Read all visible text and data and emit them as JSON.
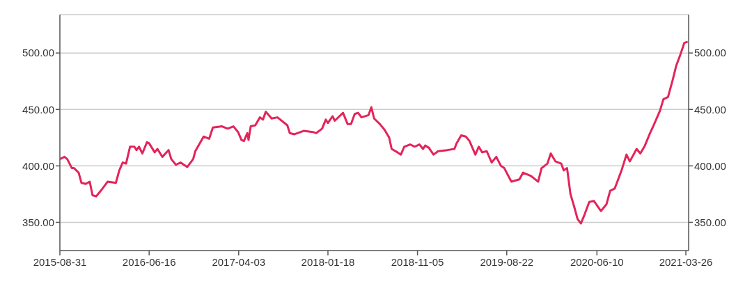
{
  "chart_data": {
    "type": "line",
    "x": [
      "2015-08-31",
      "2015-09-15",
      "2015-09-24",
      "2015-10-09",
      "2015-10-16",
      "2015-10-31",
      "2015-11-09",
      "2015-11-23",
      "2015-12-06",
      "2015-12-15",
      "2015-12-27",
      "2016-01-11",
      "2016-02-02",
      "2016-02-29",
      "2016-03-11",
      "2016-03-22",
      "2016-04-02",
      "2016-04-15",
      "2016-04-29",
      "2016-05-06",
      "2016-05-14",
      "2016-05-25",
      "2016-06-09",
      "2016-06-16",
      "2016-07-04",
      "2016-07-13",
      "2016-07-29",
      "2016-08-18",
      "2016-08-27",
      "2016-09-11",
      "2016-09-26",
      "2016-10-18",
      "2016-11-06",
      "2016-11-13",
      "2016-12-10",
      "2016-12-28",
      "2017-01-09",
      "2017-02-08",
      "2017-02-26",
      "2017-03-17",
      "2017-04-01",
      "2017-04-12",
      "2017-04-20",
      "2017-05-01",
      "2017-05-05",
      "2017-05-12",
      "2017-05-27",
      "2017-06-11",
      "2017-06-21",
      "2017-06-30",
      "2017-07-19",
      "2017-08-07",
      "2017-09-08",
      "2017-09-16",
      "2017-10-01",
      "2017-10-31",
      "2017-11-30",
      "2017-12-11",
      "2017-12-30",
      "2018-01-11",
      "2018-01-18",
      "2018-02-02",
      "2018-02-09",
      "2018-03-08",
      "2018-03-23",
      "2018-04-03",
      "2018-04-15",
      "2018-04-26",
      "2018-05-07",
      "2018-05-30",
      "2018-06-08",
      "2018-06-17",
      "2018-07-06",
      "2018-07-21",
      "2018-08-05",
      "2018-08-13",
      "2018-09-01",
      "2018-09-12",
      "2018-09-23",
      "2018-10-12",
      "2018-10-27",
      "2018-11-11",
      "2018-11-23",
      "2018-11-30",
      "2018-12-12",
      "2018-12-27",
      "2019-01-11",
      "2019-02-10",
      "2019-03-05",
      "2019-03-12",
      "2019-03-27",
      "2019-04-11",
      "2019-04-23",
      "2019-05-12",
      "2019-05-23",
      "2019-06-03",
      "2019-06-18",
      "2019-07-04",
      "2019-07-19",
      "2019-08-03",
      "2019-08-14",
      "2019-09-06",
      "2019-10-02",
      "2019-10-14",
      "2019-11-09",
      "2019-12-02",
      "2019-12-13",
      "2020-01-01",
      "2020-01-12",
      "2020-01-27",
      "2020-02-15",
      "2020-02-23",
      "2020-03-05",
      "2020-03-16",
      "2020-03-28",
      "2020-04-08",
      "2020-04-19",
      "2020-05-01",
      "2020-05-16",
      "2020-05-31",
      "2020-06-23",
      "2020-07-11",
      "2020-07-23",
      "2020-08-07",
      "2020-08-29",
      "2020-09-14",
      "2020-09-25",
      "2020-10-17",
      "2020-10-29",
      "2020-11-13",
      "2020-11-28",
      "2020-12-13",
      "2021-01-01",
      "2021-01-12",
      "2021-01-27",
      "2021-02-11",
      "2021-02-23",
      "2021-03-10",
      "2021-03-21",
      "2021-04-01"
    ],
    "series": [
      {
        "color": "#e3245a",
        "values": [
          406,
          408,
          406,
          398,
          398,
          394,
          385,
          384,
          386,
          374,
          373,
          378,
          386,
          385,
          396,
          403,
          402,
          417,
          417,
          414,
          417,
          411,
          421,
          420,
          412,
          415,
          408,
          414,
          406,
          401,
          403,
          399,
          406,
          413,
          426,
          424,
          434,
          435,
          433,
          435,
          430,
          423,
          422,
          429,
          423,
          435,
          436,
          443,
          441,
          448,
          442,
          443,
          436,
          429,
          428,
          431,
          430,
          429,
          433,
          441,
          438,
          444,
          440,
          447,
          437,
          437,
          446,
          447,
          443,
          445,
          452,
          442,
          437,
          432,
          425,
          415,
          412,
          410,
          417,
          419,
          417,
          419,
          415,
          418,
          416,
          410,
          413,
          414,
          415,
          420,
          427,
          426,
          422,
          410,
          417,
          412,
          413,
          403,
          408,
          400,
          398,
          386,
          388,
          394,
          391,
          386,
          398,
          402,
          411,
          404,
          402,
          396,
          398,
          375,
          364,
          353,
          349,
          357,
          368,
          369,
          360,
          366,
          378,
          380,
          396,
          410,
          404,
          415,
          411,
          418,
          428,
          437,
          449,
          459,
          461,
          476,
          489,
          500,
          509,
          510
        ]
      }
    ],
    "xlim": [
      "2015-08-31",
      "2021-04-04"
    ],
    "xticks": [
      "2015-08-31",
      "2016-06-16",
      "2017-04-03",
      "2018-01-18",
      "2018-11-05",
      "2019-08-22",
      "2020-06-10",
      "2021-03-26"
    ],
    "ylim": [
      325,
      534
    ],
    "yticks": [
      {
        "value": 350,
        "label": "350.00"
      },
      {
        "value": 400,
        "label": "400.00"
      },
      {
        "value": 450,
        "label": "450.00"
      },
      {
        "value": 500,
        "label": "500.00"
      }
    ],
    "y2lim": [
      325,
      534
    ],
    "y2ticks": [
      {
        "value": 350,
        "label": "350.00"
      },
      {
        "value": 400,
        "label": "400.00"
      },
      {
        "value": 450,
        "label": "450.00"
      },
      {
        "value": 500,
        "label": "500.00"
      }
    ],
    "grid": "y",
    "legend": false,
    "marker": "none",
    "line_style": "solid"
  }
}
